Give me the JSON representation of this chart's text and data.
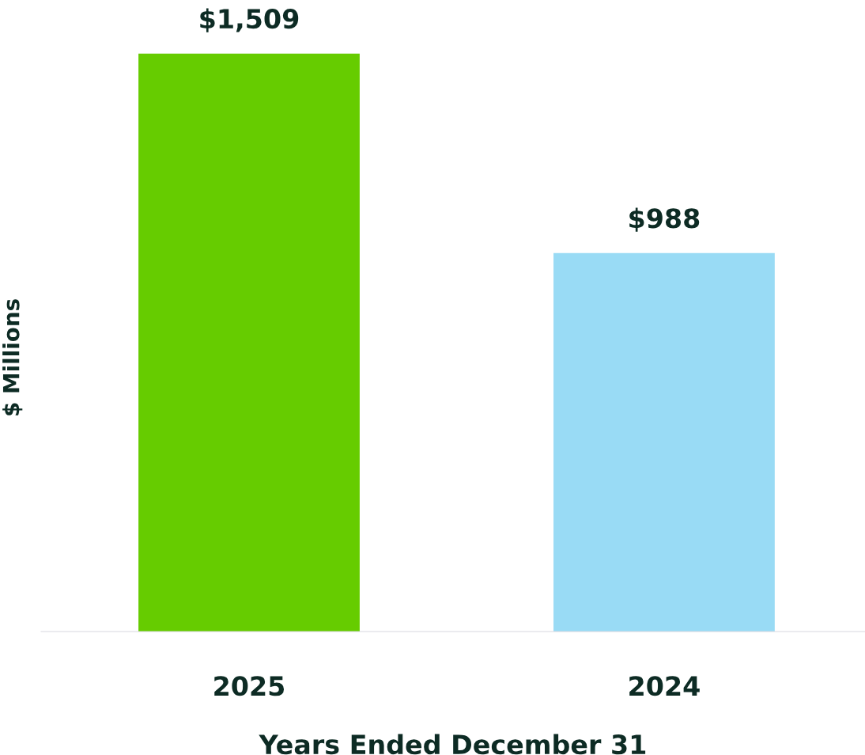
{
  "chart_data": {
    "type": "bar",
    "xlabel": "Years Ended December 31",
    "ylabel": "$ Millions",
    "categories": [
      "2025",
      "2024"
    ],
    "values": [
      1509,
      988
    ],
    "colors": [
      "#66cc00",
      "#99dbf5"
    ],
    "value_labels": [
      "$1,509",
      "$988"
    ],
    "grid": false
  }
}
